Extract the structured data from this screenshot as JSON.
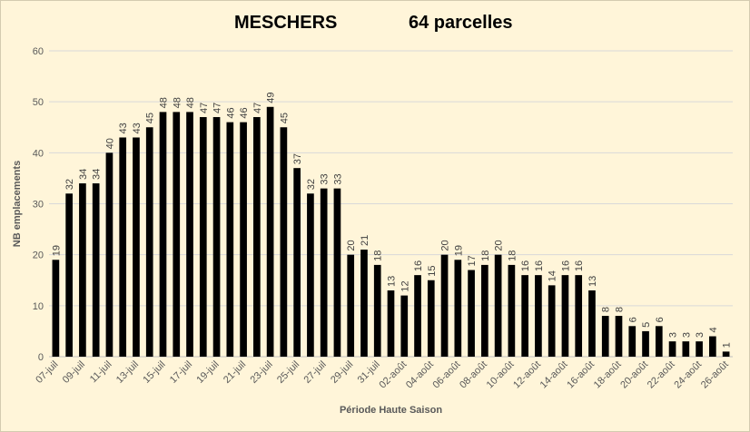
{
  "chart_data": {
    "type": "bar",
    "title_left": "MESCHERS",
    "title_right": "64 parcelles",
    "xlabel": "Période Haute Saison",
    "ylabel": "NB emplacements",
    "ylim": [
      0,
      60
    ],
    "yticks": [
      0,
      10,
      20,
      30,
      40,
      50,
      60
    ],
    "grid": true,
    "bar_color": "#000000",
    "categories": [
      "07-juil",
      "08-juil",
      "09-juil",
      "10-juil",
      "11-juil",
      "12-juil",
      "13-juil",
      "14-juil",
      "15-juil",
      "16-juil",
      "17-juil",
      "18-juil",
      "19-juil",
      "20-juil",
      "21-juil",
      "22-juil",
      "23-juil",
      "24-juil",
      "25-juil",
      "26-juil",
      "27-juil",
      "28-juil",
      "29-juil",
      "30-juil",
      "31-juil",
      "01-août",
      "02-août",
      "03-août",
      "04-août",
      "05-août",
      "06-août",
      "07-août",
      "08-août",
      "09-août",
      "10-août",
      "11-août",
      "12-août",
      "13-août",
      "14-août",
      "15-août",
      "16-août",
      "17-août",
      "18-août",
      "19-août",
      "20-août",
      "21-août",
      "22-août",
      "23-août",
      "24-août",
      "25-août",
      "26-août"
    ],
    "visible_tick_labels": [
      "07-juil",
      "09-juil",
      "11-juil",
      "13-juil",
      "15-juil",
      "17-juil",
      "19-juil",
      "21-juil",
      "23-juil",
      "25-juil",
      "27-juil",
      "29-juil",
      "31-juil",
      "02-août",
      "04-août",
      "06-août",
      "08-août",
      "10-août",
      "12-août",
      "14-août",
      "16-août",
      "18-août",
      "20-août",
      "22-août",
      "24-août",
      "26-août"
    ],
    "values": [
      19,
      32,
      34,
      34,
      40,
      43,
      43,
      45,
      48,
      48,
      48,
      47,
      47,
      46,
      46,
      47,
      49,
      45,
      37,
      32,
      33,
      33,
      20,
      21,
      18,
      13,
      12,
      16,
      15,
      20,
      19,
      17,
      18,
      20,
      18,
      16,
      16,
      14,
      16,
      16,
      13,
      8,
      8,
      6,
      5,
      6,
      3,
      3,
      3,
      4,
      1
    ]
  }
}
